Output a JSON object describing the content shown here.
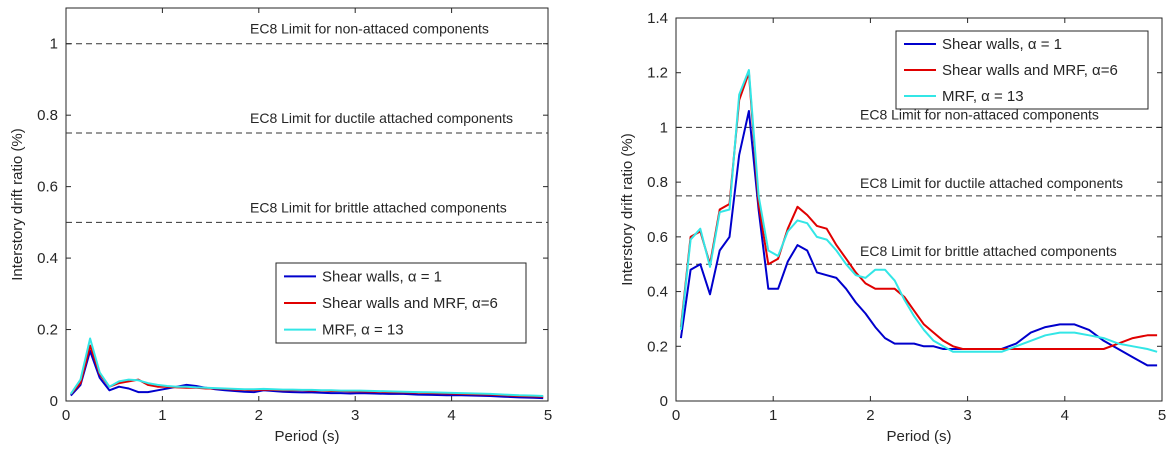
{
  "chart_data": [
    {
      "type": "line",
      "title": "",
      "xlabel": "Period (s)",
      "ylabel": "Interstory drift ratio (%)",
      "xlim": [
        0,
        5
      ],
      "ylim": [
        0,
        1.1
      ],
      "xticks": [
        0,
        1,
        2,
        3,
        4,
        5
      ],
      "yticks": [
        0,
        0.2,
        0.4,
        0.6,
        0.8,
        1
      ],
      "xtick_labels": [
        "0",
        "1",
        "2",
        "3",
        "4",
        "5"
      ],
      "ytick_labels": [
        "0",
        "0.2",
        "0.4",
        "0.6",
        "0.8",
        "1"
      ],
      "grid": false,
      "legend_position": "center-right",
      "series": [
        {
          "name": "Shear walls, α = 1",
          "color": "#0000cc",
          "x": [
            0.05,
            0.15,
            0.25,
            0.35,
            0.45,
            0.55,
            0.65,
            0.75,
            0.85,
            0.95,
            1.05,
            1.15,
            1.25,
            1.35,
            1.45,
            1.55,
            1.65,
            1.75,
            1.85,
            1.95,
            2.05,
            2.15,
            2.25,
            2.35,
            2.45,
            2.55,
            2.65,
            2.75,
            2.85,
            2.95,
            3.05,
            3.2,
            3.35,
            3.5,
            3.65,
            3.8,
            3.95,
            4.1,
            4.25,
            4.4,
            4.55,
            4.7,
            4.85,
            4.95
          ],
          "y": [
            0.015,
            0.045,
            0.14,
            0.065,
            0.03,
            0.04,
            0.035,
            0.025,
            0.025,
            0.03,
            0.035,
            0.04,
            0.045,
            0.042,
            0.037,
            0.033,
            0.03,
            0.028,
            0.026,
            0.025,
            0.03,
            0.028,
            0.026,
            0.025,
            0.024,
            0.024,
            0.023,
            0.022,
            0.022,
            0.021,
            0.022,
            0.021,
            0.02,
            0.02,
            0.018,
            0.017,
            0.016,
            0.016,
            0.015,
            0.014,
            0.012,
            0.01,
            0.009,
            0.008
          ]
        },
        {
          "name": "Shear walls and MRF, α=6",
          "color": "#e00000",
          "x": [
            0.05,
            0.15,
            0.25,
            0.35,
            0.45,
            0.55,
            0.65,
            0.75,
            0.85,
            0.95,
            1.05,
            1.15,
            1.25,
            1.35,
            1.45,
            1.55,
            1.65,
            1.75,
            1.85,
            1.95,
            2.05,
            2.15,
            2.25,
            2.35,
            2.45,
            2.55,
            2.65,
            2.75,
            2.85,
            2.95,
            3.05,
            3.2,
            3.35,
            3.5,
            3.65,
            3.8,
            3.95,
            4.1,
            4.25,
            4.4,
            4.55,
            4.7,
            4.85,
            4.95
          ],
          "y": [
            0.02,
            0.05,
            0.155,
            0.075,
            0.04,
            0.05,
            0.055,
            0.06,
            0.045,
            0.04,
            0.04,
            0.038,
            0.037,
            0.037,
            0.035,
            0.035,
            0.034,
            0.032,
            0.031,
            0.03,
            0.032,
            0.031,
            0.03,
            0.03,
            0.03,
            0.029,
            0.029,
            0.028,
            0.028,
            0.027,
            0.027,
            0.026,
            0.025,
            0.024,
            0.023,
            0.022,
            0.021,
            0.02,
            0.019,
            0.018,
            0.016,
            0.014,
            0.013,
            0.012
          ]
        },
        {
          "name": "MRF, α = 13",
          "color": "#33e6e6",
          "x": [
            0.05,
            0.15,
            0.25,
            0.35,
            0.45,
            0.55,
            0.65,
            0.75,
            0.85,
            0.95,
            1.05,
            1.15,
            1.25,
            1.35,
            1.45,
            1.55,
            1.65,
            1.75,
            1.85,
            1.95,
            2.05,
            2.15,
            2.25,
            2.35,
            2.45,
            2.55,
            2.65,
            2.75,
            2.85,
            2.95,
            3.05,
            3.2,
            3.35,
            3.5,
            3.65,
            3.8,
            3.95,
            4.1,
            4.25,
            4.4,
            4.55,
            4.7,
            4.85,
            4.95
          ],
          "y": [
            0.02,
            0.06,
            0.175,
            0.08,
            0.04,
            0.055,
            0.06,
            0.058,
            0.05,
            0.045,
            0.042,
            0.04,
            0.04,
            0.038,
            0.037,
            0.036,
            0.035,
            0.034,
            0.033,
            0.033,
            0.034,
            0.033,
            0.032,
            0.032,
            0.031,
            0.031,
            0.03,
            0.03,
            0.029,
            0.029,
            0.029,
            0.028,
            0.027,
            0.026,
            0.025,
            0.024,
            0.023,
            0.022,
            0.021,
            0.02,
            0.018,
            0.016,
            0.015,
            0.014
          ]
        }
      ],
      "reference_lines": [
        {
          "y": 1.0,
          "label": "EC8 Limit for  non-attaced components",
          "style": "dashed"
        },
        {
          "y": 0.75,
          "label": "EC8 Limit for ductile attached components",
          "style": "dashed"
        },
        {
          "y": 0.5,
          "label": "EC8 Limit for brittle attached components",
          "style": "dashed"
        }
      ]
    },
    {
      "type": "line",
      "title": "",
      "xlabel": "Period (s)",
      "ylabel": "Interstory drift ratio (%)",
      "xlim": [
        0,
        5
      ],
      "ylim": [
        0,
        1.4
      ],
      "xticks": [
        0,
        1,
        2,
        3,
        4,
        5
      ],
      "yticks": [
        0,
        0.2,
        0.4,
        0.6,
        0.8,
        1,
        1.2,
        1.4
      ],
      "xtick_labels": [
        "0",
        "1",
        "2",
        "3",
        "4",
        "5"
      ],
      "ytick_labels": [
        "0",
        "0.2",
        "0.4",
        "0.6",
        "0.8",
        "1",
        "1.2",
        "1.4"
      ],
      "grid": false,
      "legend_position": "top-right",
      "series": [
        {
          "name": "Shear walls, α = 1",
          "color": "#0000cc",
          "x": [
            0.05,
            0.15,
            0.25,
            0.35,
            0.45,
            0.55,
            0.65,
            0.75,
            0.85,
            0.95,
            1.05,
            1.15,
            1.25,
            1.35,
            1.45,
            1.55,
            1.65,
            1.75,
            1.85,
            1.95,
            2.05,
            2.15,
            2.25,
            2.35,
            2.45,
            2.55,
            2.65,
            2.75,
            2.85,
            2.95,
            3.05,
            3.2,
            3.35,
            3.5,
            3.65,
            3.8,
            3.95,
            4.1,
            4.25,
            4.4,
            4.55,
            4.7,
            4.85,
            4.95
          ],
          "y": [
            0.23,
            0.48,
            0.5,
            0.39,
            0.55,
            0.6,
            0.9,
            1.06,
            0.7,
            0.41,
            0.41,
            0.51,
            0.57,
            0.55,
            0.47,
            0.46,
            0.45,
            0.41,
            0.36,
            0.32,
            0.27,
            0.23,
            0.21,
            0.21,
            0.21,
            0.2,
            0.2,
            0.19,
            0.19,
            0.19,
            0.19,
            0.19,
            0.19,
            0.21,
            0.25,
            0.27,
            0.28,
            0.28,
            0.26,
            0.22,
            0.19,
            0.16,
            0.13,
            0.13
          ]
        },
        {
          "name": "Shear walls and MRF, α=6",
          "color": "#e00000",
          "x": [
            0.05,
            0.15,
            0.25,
            0.35,
            0.45,
            0.55,
            0.65,
            0.75,
            0.85,
            0.95,
            1.05,
            1.15,
            1.25,
            1.35,
            1.45,
            1.55,
            1.65,
            1.75,
            1.85,
            1.95,
            2.05,
            2.15,
            2.25,
            2.35,
            2.45,
            2.55,
            2.65,
            2.75,
            2.85,
            2.95,
            3.05,
            3.2,
            3.35,
            3.5,
            3.65,
            3.8,
            3.95,
            4.1,
            4.25,
            4.4,
            4.55,
            4.7,
            4.85,
            4.95
          ],
          "y": [
            0.27,
            0.6,
            0.62,
            0.5,
            0.7,
            0.72,
            1.1,
            1.2,
            0.72,
            0.5,
            0.52,
            0.63,
            0.71,
            0.68,
            0.64,
            0.63,
            0.57,
            0.52,
            0.47,
            0.43,
            0.41,
            0.41,
            0.41,
            0.38,
            0.33,
            0.28,
            0.25,
            0.22,
            0.2,
            0.19,
            0.19,
            0.19,
            0.19,
            0.19,
            0.19,
            0.19,
            0.19,
            0.19,
            0.19,
            0.19,
            0.21,
            0.23,
            0.24,
            0.24
          ]
        },
        {
          "name": "MRF, α = 13",
          "color": "#33e6e6",
          "x": [
            0.05,
            0.15,
            0.25,
            0.35,
            0.45,
            0.55,
            0.65,
            0.75,
            0.85,
            0.95,
            1.05,
            1.15,
            1.25,
            1.35,
            1.45,
            1.55,
            1.65,
            1.75,
            1.85,
            1.95,
            2.05,
            2.15,
            2.25,
            2.35,
            2.45,
            2.55,
            2.65,
            2.75,
            2.85,
            2.95,
            3.05,
            3.2,
            3.35,
            3.5,
            3.65,
            3.8,
            3.95,
            4.1,
            4.25,
            4.4,
            4.55,
            4.7,
            4.85,
            4.95
          ],
          "y": [
            0.26,
            0.59,
            0.63,
            0.49,
            0.69,
            0.7,
            1.12,
            1.21,
            0.75,
            0.55,
            0.53,
            0.62,
            0.66,
            0.65,
            0.6,
            0.59,
            0.55,
            0.5,
            0.46,
            0.45,
            0.48,
            0.48,
            0.44,
            0.37,
            0.31,
            0.26,
            0.22,
            0.2,
            0.18,
            0.18,
            0.18,
            0.18,
            0.18,
            0.2,
            0.22,
            0.24,
            0.25,
            0.25,
            0.24,
            0.23,
            0.21,
            0.2,
            0.19,
            0.18
          ]
        }
      ],
      "reference_lines": [
        {
          "y": 1.0,
          "label": "EC8 Limit for  non-attaced components",
          "style": "dashed"
        },
        {
          "y": 0.75,
          "label": "EC8 Limit for ductile attached components",
          "style": "dashed"
        },
        {
          "y": 0.5,
          "label": "EC8 Limit for brittle attached components",
          "style": "dashed"
        }
      ]
    }
  ]
}
